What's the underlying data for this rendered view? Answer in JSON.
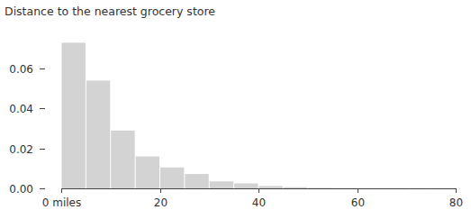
{
  "chart_data": {
    "type": "histogram",
    "title": "Distance to the nearest grocery store",
    "bins": [
      0,
      5,
      10,
      15,
      20,
      25,
      30,
      35,
      40,
      45,
      50,
      55,
      60,
      65,
      70,
      75,
      80
    ],
    "values": [
      0.073,
      0.054,
      0.029,
      0.016,
      0.0105,
      0.0072,
      0.0035,
      0.0025,
      0.0012,
      0.0006,
      0.0003,
      0.0002,
      0.0001,
      0.0001,
      5e-05,
      5e-05
    ],
    "color": "#d3d3d3",
    "xlim": [
      0,
      80
    ],
    "xticks": [
      {
        "value": 0,
        "label": "0 miles"
      },
      20,
      40,
      60,
      80
    ],
    "ylim": [
      0,
      0.075
    ],
    "yticks": [
      {
        "value": 0,
        "label": "0.00"
      },
      {
        "value": 0.02,
        "label": "0.02"
      },
      {
        "value": 0.04,
        "label": "0.04"
      },
      {
        "value": 0.06,
        "label": "0.06"
      }
    ],
    "grid": false
  }
}
